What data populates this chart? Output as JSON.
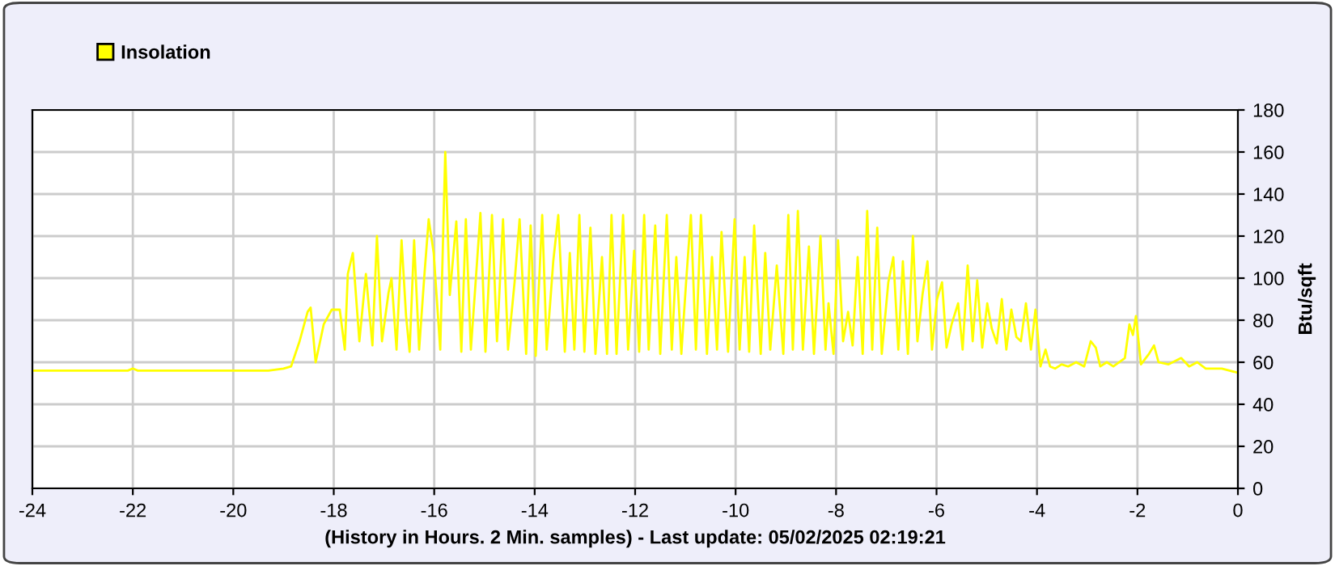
{
  "chart_data": {
    "type": "line",
    "xlabel": "(History in Hours. 2 Min. samples) - Last update: 05/02/2025 02:19:21",
    "ylabel": "Btu/sqft",
    "xlim": [
      -24,
      0
    ],
    "xticks": [
      -24,
      -22,
      -20,
      -18,
      -16,
      -14,
      -12,
      -10,
      -8,
      -6,
      -4,
      -2,
      0
    ],
    "ylim": [
      0,
      180
    ],
    "yticks": [
      0,
      20,
      40,
      60,
      80,
      100,
      120,
      140,
      160,
      180
    ],
    "grid": true,
    "legend": "top left",
    "marker": "none",
    "line_style": "solid",
    "series": [
      {
        "name": "Insolation",
        "color": "#ffff00",
        "x": [
          -24,
          -22.1,
          -22,
          -21.9,
          -19.3,
          -19,
          -18.85,
          -18.68,
          -18.52,
          -18.46,
          -18.36,
          -18.2,
          -18.04,
          -17.88,
          -17.78,
          -17.72,
          -17.62,
          -17.49,
          -17.36,
          -17.23,
          -17.14,
          -17.04,
          -16.91,
          -16.85,
          -16.75,
          -16.65,
          -16.56,
          -16.49,
          -16.4,
          -16.3,
          -16.2,
          -16.11,
          -16.01,
          -15.88,
          -15.78,
          -15.69,
          -15.56,
          -15.46,
          -15.37,
          -15.27,
          -15.17,
          -15.08,
          -14.98,
          -14.85,
          -14.75,
          -14.63,
          -14.53,
          -14.4,
          -14.3,
          -14.17,
          -14.08,
          -13.98,
          -13.85,
          -13.76,
          -13.63,
          -13.53,
          -13.4,
          -13.3,
          -13.21,
          -13.11,
          -13.01,
          -12.89,
          -12.79,
          -12.66,
          -12.56,
          -12.47,
          -12.37,
          -12.24,
          -12.14,
          -12.02,
          -11.92,
          -11.82,
          -11.73,
          -11.6,
          -11.5,
          -11.37,
          -11.27,
          -11.18,
          -11.08,
          -10.98,
          -10.89,
          -10.79,
          -10.69,
          -10.57,
          -10.47,
          -10.37,
          -10.28,
          -10.15,
          -10.02,
          -9.92,
          -9.82,
          -9.73,
          -9.63,
          -9.5,
          -9.41,
          -9.31,
          -9.18,
          -9.05,
          -8.95,
          -8.86,
          -8.76,
          -8.66,
          -8.54,
          -8.44,
          -8.31,
          -8.21,
          -8.15,
          -8.05,
          -7.96,
          -7.86,
          -7.76,
          -7.67,
          -7.57,
          -7.47,
          -7.38,
          -7.28,
          -7.18,
          -7.09,
          -6.96,
          -6.86,
          -6.76,
          -6.67,
          -6.57,
          -6.47,
          -6.38,
          -6.28,
          -6.18,
          -6.09,
          -5.99,
          -5.89,
          -5.8,
          -5.7,
          -5.57,
          -5.48,
          -5.38,
          -5.28,
          -5.19,
          -5.09,
          -4.99,
          -4.9,
          -4.8,
          -4.7,
          -4.61,
          -4.51,
          -4.41,
          -4.32,
          -4.22,
          -4.12,
          -4.03,
          -3.93,
          -3.83,
          -3.74,
          -3.64,
          -3.51,
          -3.38,
          -3.22,
          -3.06,
          -2.93,
          -2.83,
          -2.74,
          -2.61,
          -2.48,
          -2.25,
          -2.16,
          -2.09,
          -2.03,
          -1.93,
          -1.77,
          -1.67,
          -1.58,
          -1.38,
          -1.13,
          -0.97,
          -0.81,
          -0.64,
          -0.32,
          0
        ],
        "values": [
          56,
          56,
          57,
          56,
          56,
          57,
          58,
          70,
          84,
          86,
          60,
          78,
          85,
          85,
          66,
          102,
          112,
          70,
          102,
          68,
          120,
          70,
          93,
          100,
          66,
          118,
          82,
          65,
          118,
          66,
          100,
          128,
          112,
          66,
          160,
          92,
          127,
          65,
          128,
          66,
          100,
          131,
          65,
          130,
          70,
          128,
          66,
          98,
          128,
          64,
          125,
          63,
          130,
          66,
          108,
          130,
          65,
          112,
          66,
          130,
          65,
          124,
          64,
          110,
          64,
          130,
          64,
          130,
          66,
          113,
          65,
          130,
          66,
          125,
          64,
          130,
          66,
          110,
          64,
          100,
          130,
          66,
          130,
          64,
          110,
          66,
          122,
          65,
          128,
          66,
          110,
          65,
          125,
          64,
          112,
          66,
          106,
          64,
          130,
          66,
          132,
          66,
          115,
          64,
          120,
          66,
          88,
          64,
          118,
          70,
          84,
          68,
          110,
          64,
          132,
          66,
          124,
          64,
          98,
          110,
          66,
          108,
          64,
          120,
          70,
          92,
          108,
          66,
          90,
          98,
          67,
          78,
          88,
          66,
          106,
          70,
          99,
          67,
          88,
          76,
          69,
          90,
          66,
          85,
          72,
          70,
          88,
          66,
          85,
          58,
          66,
          58,
          57,
          59,
          58,
          60,
          58,
          70,
          67,
          58,
          60,
          58,
          62,
          78,
          73,
          82,
          59,
          64,
          68,
          60,
          59,
          62,
          58,
          60,
          57,
          57,
          55
        ]
      }
    ]
  }
}
